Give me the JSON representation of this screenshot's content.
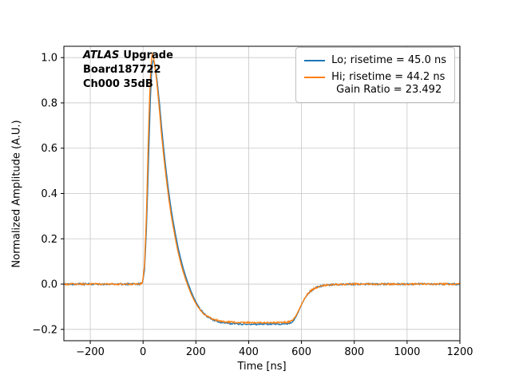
{
  "chart_data": {
    "type": "line",
    "title": "",
    "xlabel": "Time [ns]",
    "ylabel": "Normalized Amplitude (A.U.)",
    "xlim": [
      -300,
      1200
    ],
    "ylim": [
      -0.25,
      1.05
    ],
    "xticks": [
      -200,
      0,
      200,
      400,
      600,
      800,
      1000,
      1200
    ],
    "yticks": [
      -0.2,
      0,
      0.2,
      0.4,
      0.6,
      0.8,
      1
    ],
    "grid": true,
    "grid_color": "#c6c6c6",
    "legend": {
      "position": "upper right",
      "extra_line": "Gain Ratio = 23.492"
    },
    "gain_ratio": 23.492,
    "annotation": {
      "italic": "ATLAS",
      "bold": "Upgrade",
      "line2": "Board187722",
      "line3": "Ch000 35dB"
    },
    "series": [
      {
        "label": "Lo; risetime = 45.0 ns",
        "color": "#1f77b4",
        "risetime_ns": 45.0,
        "points": [
          [
            -300,
            0
          ],
          [
            -20,
            0
          ],
          [
            -10,
            0.001
          ],
          [
            -2,
            0.005
          ],
          [
            5,
            0.06
          ],
          [
            12,
            0.22
          ],
          [
            20,
            0.52
          ],
          [
            27,
            0.8
          ],
          [
            33,
            0.95
          ],
          [
            38,
            0.99
          ],
          [
            44,
            0.975
          ],
          [
            52,
            0.91
          ],
          [
            62,
            0.8
          ],
          [
            72,
            0.67
          ],
          [
            82,
            0.555
          ],
          [
            92,
            0.455
          ],
          [
            102,
            0.365
          ],
          [
            112,
            0.29
          ],
          [
            122,
            0.225
          ],
          [
            132,
            0.165
          ],
          [
            142,
            0.115
          ],
          [
            152,
            0.07
          ],
          [
            162,
            0.032
          ],
          [
            172,
            -0.002
          ],
          [
            182,
            -0.032
          ],
          [
            192,
            -0.06
          ],
          [
            202,
            -0.083
          ],
          [
            215,
            -0.108
          ],
          [
            228,
            -0.127
          ],
          [
            242,
            -0.142
          ],
          [
            258,
            -0.154
          ],
          [
            275,
            -0.163
          ],
          [
            292,
            -0.169
          ],
          [
            310,
            -0.172
          ],
          [
            335,
            -0.175
          ],
          [
            365,
            -0.176
          ],
          [
            400,
            -0.177
          ],
          [
            450,
            -0.177
          ],
          [
            500,
            -0.177
          ],
          [
            530,
            -0.176
          ],
          [
            550,
            -0.174
          ],
          [
            562,
            -0.169
          ],
          [
            572,
            -0.158
          ],
          [
            582,
            -0.138
          ],
          [
            592,
            -0.112
          ],
          [
            602,
            -0.086
          ],
          [
            612,
            -0.064
          ],
          [
            622,
            -0.047
          ],
          [
            632,
            -0.034
          ],
          [
            645,
            -0.022
          ],
          [
            660,
            -0.013
          ],
          [
            675,
            -0.008
          ],
          [
            695,
            -0.004
          ],
          [
            720,
            -0.002
          ],
          [
            750,
            -0.001
          ],
          [
            800,
            0
          ],
          [
            1200,
            0
          ]
        ]
      },
      {
        "label": "Hi; risetime = 44.2 ns",
        "color": "#ff7f0e",
        "risetime_ns": 44.2,
        "points": [
          [
            -300,
            0
          ],
          [
            -20,
            0
          ],
          [
            -10,
            0.001
          ],
          [
            -2,
            0.006
          ],
          [
            5,
            0.08
          ],
          [
            12,
            0.27
          ],
          [
            19,
            0.6
          ],
          [
            26,
            0.87
          ],
          [
            31,
            0.98
          ],
          [
            35,
            1.02
          ],
          [
            41,
            0.99
          ],
          [
            50,
            0.915
          ],
          [
            60,
            0.795
          ],
          [
            70,
            0.66
          ],
          [
            80,
            0.545
          ],
          [
            90,
            0.445
          ],
          [
            100,
            0.355
          ],
          [
            110,
            0.28
          ],
          [
            120,
            0.215
          ],
          [
            130,
            0.155
          ],
          [
            140,
            0.105
          ],
          [
            150,
            0.062
          ],
          [
            160,
            0.025
          ],
          [
            170,
            -0.008
          ],
          [
            180,
            -0.038
          ],
          [
            190,
            -0.064
          ],
          [
            200,
            -0.086
          ],
          [
            213,
            -0.109
          ],
          [
            226,
            -0.127
          ],
          [
            240,
            -0.14
          ],
          [
            256,
            -0.15
          ],
          [
            273,
            -0.158
          ],
          [
            290,
            -0.163
          ],
          [
            308,
            -0.166
          ],
          [
            333,
            -0.168
          ],
          [
            363,
            -0.169
          ],
          [
            400,
            -0.17
          ],
          [
            450,
            -0.17
          ],
          [
            500,
            -0.17
          ],
          [
            530,
            -0.169
          ],
          [
            550,
            -0.167
          ],
          [
            562,
            -0.162
          ],
          [
            572,
            -0.152
          ],
          [
            582,
            -0.134
          ],
          [
            592,
            -0.11
          ],
          [
            602,
            -0.085
          ],
          [
            612,
            -0.063
          ],
          [
            622,
            -0.046
          ],
          [
            632,
            -0.033
          ],
          [
            645,
            -0.021
          ],
          [
            660,
            -0.013
          ],
          [
            675,
            -0.008
          ],
          [
            695,
            -0.004
          ],
          [
            720,
            -0.002
          ],
          [
            750,
            -0.001
          ],
          [
            800,
            0
          ],
          [
            1200,
            0
          ]
        ]
      }
    ]
  }
}
